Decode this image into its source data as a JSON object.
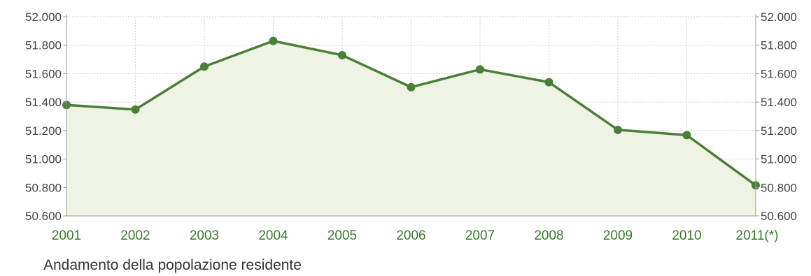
{
  "chart_data": {
    "type": "area",
    "title": "Andamento della popolazione residente",
    "xlabel": "",
    "ylabel": "",
    "categories": [
      "2001",
      "2002",
      "2003",
      "2004",
      "2005",
      "2006",
      "2007",
      "2008",
      "2009",
      "2010",
      "2011(*)"
    ],
    "series": [
      {
        "values": [
          51380,
          51348,
          51650,
          51830,
          51730,
          51505,
          51630,
          51540,
          51205,
          51168,
          50815
        ]
      }
    ],
    "yticks": [
      50600,
      50800,
      51000,
      51200,
      51400,
      51600,
      51800,
      52000
    ],
    "ytick_labels": [
      "50.600",
      "50.800",
      "51.000",
      "51.200",
      "51.400",
      "51.600",
      "51.800",
      "52.000"
    ],
    "ylim": [
      50600,
      52000
    ],
    "grid": true,
    "legend": "none",
    "colors": {
      "line": "#4a7f37",
      "fill": "#eef3e4",
      "grid": "#cfcfcf",
      "axis": "#999999"
    }
  }
}
